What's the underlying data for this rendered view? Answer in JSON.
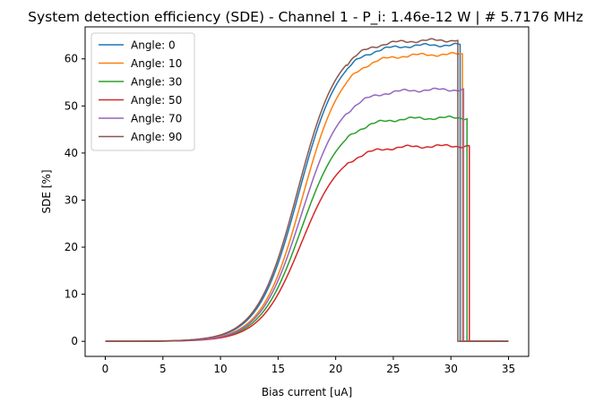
{
  "chart_data": {
    "type": "line",
    "title": "System detection efficiency (SDE) - Channel 1 - P_i: 1.46e-12 W | # 5.7176 MHz",
    "xlabel": "Bias current [uA]",
    "ylabel": "SDE [%]",
    "xlim": [
      -1.75,
      36.75
    ],
    "ylim": [
      -3.2,
      66.8
    ],
    "xticks": [
      0,
      5,
      10,
      15,
      20,
      25,
      30,
      35
    ],
    "yticks": [
      0,
      10,
      20,
      30,
      40,
      50,
      60
    ],
    "grid": false,
    "legend_position": "upper left",
    "series": [
      {
        "name": "Angle: 0",
        "color": "#1f77b4",
        "plateau": 63.0,
        "x0": 16.8,
        "width": 1.75,
        "dropoff": 30.8
      },
      {
        "name": "Angle: 10",
        "color": "#ff7f0e",
        "plateau": 61.0,
        "x0": 17.1,
        "width": 1.75,
        "dropoff": 31.0
      },
      {
        "name": "Angle: 30",
        "color": "#2ca02c",
        "plateau": 47.5,
        "x0": 17.0,
        "width": 1.75,
        "dropoff": 31.4
      },
      {
        "name": "Angle: 50",
        "color": "#d62728",
        "plateau": 41.5,
        "x0": 17.0,
        "width": 1.75,
        "dropoff": 31.6
      },
      {
        "name": "Angle: 70",
        "color": "#9467bd",
        "plateau": 53.5,
        "x0": 17.0,
        "width": 1.75,
        "dropoff": 31.1
      },
      {
        "name": "Angle: 90",
        "color": "#8c564b",
        "plateau": 64.0,
        "x0": 16.7,
        "width": 1.75,
        "dropoff": 30.6
      }
    ],
    "x_start": 0,
    "x_end": 35
  }
}
